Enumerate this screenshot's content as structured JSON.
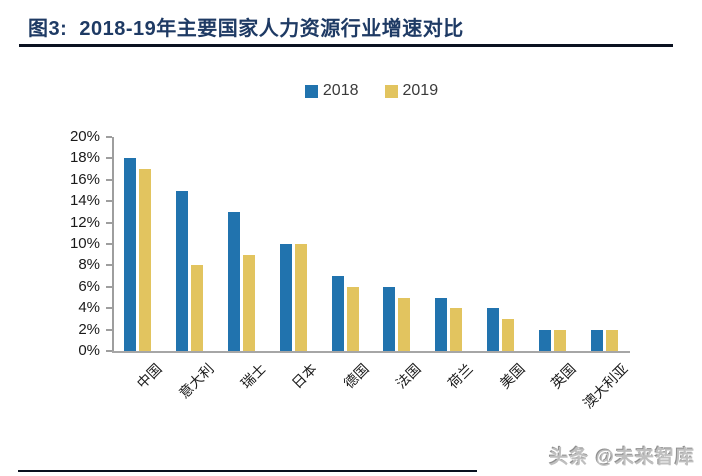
{
  "header": {
    "title": "图3:  2018-19年主要国家人力资源行业增速对比"
  },
  "footer": {
    "watermark": "头条 @未来智库"
  },
  "chart_data": {
    "type": "bar",
    "title": "2018-19年主要国家人力资源行业增速对比",
    "xlabel": "",
    "ylabel": "",
    "categories": [
      "中国",
      "意大利",
      "瑞士",
      "日本",
      "德国",
      "法国",
      "荷兰",
      "美国",
      "英国",
      "澳大利亚"
    ],
    "series": [
      {
        "name": "2018",
        "color": "#2173AE",
        "values": [
          18,
          15,
          13,
          10,
          7,
          6,
          5,
          4,
          2,
          2
        ]
      },
      {
        "name": "2019",
        "color": "#E2C45F",
        "values": [
          17,
          8,
          9,
          10,
          6,
          5,
          4,
          3,
          2,
          2
        ]
      }
    ],
    "ylim": [
      0,
      20
    ],
    "ytick_step": 2,
    "yticks": [
      "0%",
      "2%",
      "4%",
      "6%",
      "8%",
      "10%",
      "12%",
      "14%",
      "16%",
      "18%",
      "20%"
    ],
    "grid": false,
    "legend_position": "top-center",
    "axis_color": "#9E9E9E"
  }
}
